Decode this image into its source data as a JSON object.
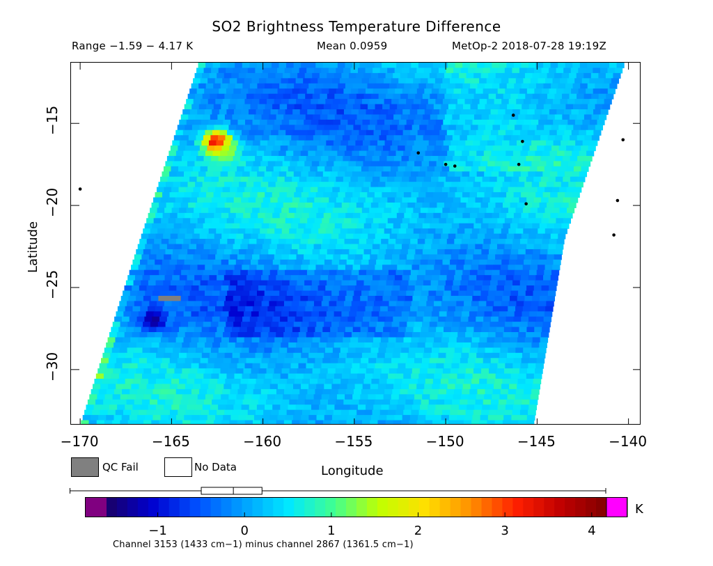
{
  "chart_data": {
    "type": "heatmap",
    "title": "SO2 Brightness Temperature Difference",
    "range_text": "Range −1.59 − 4.17 K",
    "mean_text": "Mean 0.0959",
    "satellite_text": "MetOp-2 2018-07-28 19:19Z",
    "xlabel": "Longitude",
    "ylabel": "Latitude",
    "xlim": [
      -170.5,
      -139.3
    ],
    "ylim": [
      -33.4,
      -11.3
    ],
    "x_ticks": [
      -170,
      -165,
      -160,
      -155,
      -150,
      -145,
      -140
    ],
    "x_tick_labels": [
      "−170",
      "−165",
      "−160",
      "−155",
      "−150",
      "−145",
      "−140"
    ],
    "y_ticks": [
      -15,
      -20,
      -25,
      -30
    ],
    "y_tick_labels": [
      "−15",
      "−20",
      "−25",
      "−30"
    ],
    "grid": false,
    "swath_edges": {
      "left": [
        [
          -163.5,
          -11.3
        ],
        [
          -167.0,
          -23.0
        ],
        [
          -170.0,
          -33.4
        ]
      ],
      "right": [
        [
          -140.2,
          -11.3
        ],
        [
          -143.5,
          -22.0
        ],
        [
          -145.2,
          -33.4
        ]
      ]
    },
    "background_mean_k": 0.1,
    "features": [
      {
        "label": "hot spot",
        "lon": -162.5,
        "lat": -16.2,
        "value_k": 4.0
      },
      {
        "label": "warm plume",
        "lon": -162.0,
        "lat": -16.8,
        "value_k": 1.4
      },
      {
        "label": "low-value cluster",
        "lon": -166.0,
        "lat": -27.0,
        "value_k": -1.4
      },
      {
        "label": "QC fail pixels",
        "lon": -165.0,
        "lat": -25.6,
        "value_k": null
      }
    ],
    "islands": [
      {
        "lon": -146.3,
        "lat": -14.5
      },
      {
        "lon": -140.3,
        "lat": -16.0
      },
      {
        "lon": -151.5,
        "lat": -16.8
      },
      {
        "lon": -149.5,
        "lat": -17.6
      },
      {
        "lon": -150.0,
        "lat": -17.5
      },
      {
        "lon": -146.0,
        "lat": -17.5
      },
      {
        "lon": -145.8,
        "lat": -16.1
      },
      {
        "lon": -170.0,
        "lat": -19.0
      },
      {
        "lon": -145.6,
        "lat": -19.9
      },
      {
        "lon": -140.6,
        "lat": -19.7
      },
      {
        "lon": -140.8,
        "lat": -21.8
      }
    ],
    "legend": {
      "qc_fail": "QC Fail",
      "no_data": "No Data",
      "qc_fail_color": "#808080",
      "no_data_color": "#ffffff"
    },
    "colorbar": {
      "vmin": -1.59,
      "vmax": 4.17,
      "unit": "K",
      "ticks": [
        -1,
        0,
        1,
        2,
        3,
        4
      ],
      "tick_labels": [
        "−1",
        "0",
        "1",
        "2",
        "3",
        "4"
      ],
      "under_color": "#800080",
      "over_color": "#ff00ff",
      "colors": [
        "#1a0066",
        "#0000d0",
        "#0050ff",
        "#00a0ff",
        "#00e8ff",
        "#40ff90",
        "#c0ff00",
        "#ffe000",
        "#ff9000",
        "#ff2000",
        "#c00000",
        "#800000"
      ]
    },
    "boxplot": {
      "min": -1.59,
      "q1": -0.25,
      "median": 0.12,
      "q3": 0.45,
      "max": 4.17
    },
    "footnote": "Channel 3153 (1433 cm−1) minus channel 2867 (1361.5 cm−1)"
  }
}
